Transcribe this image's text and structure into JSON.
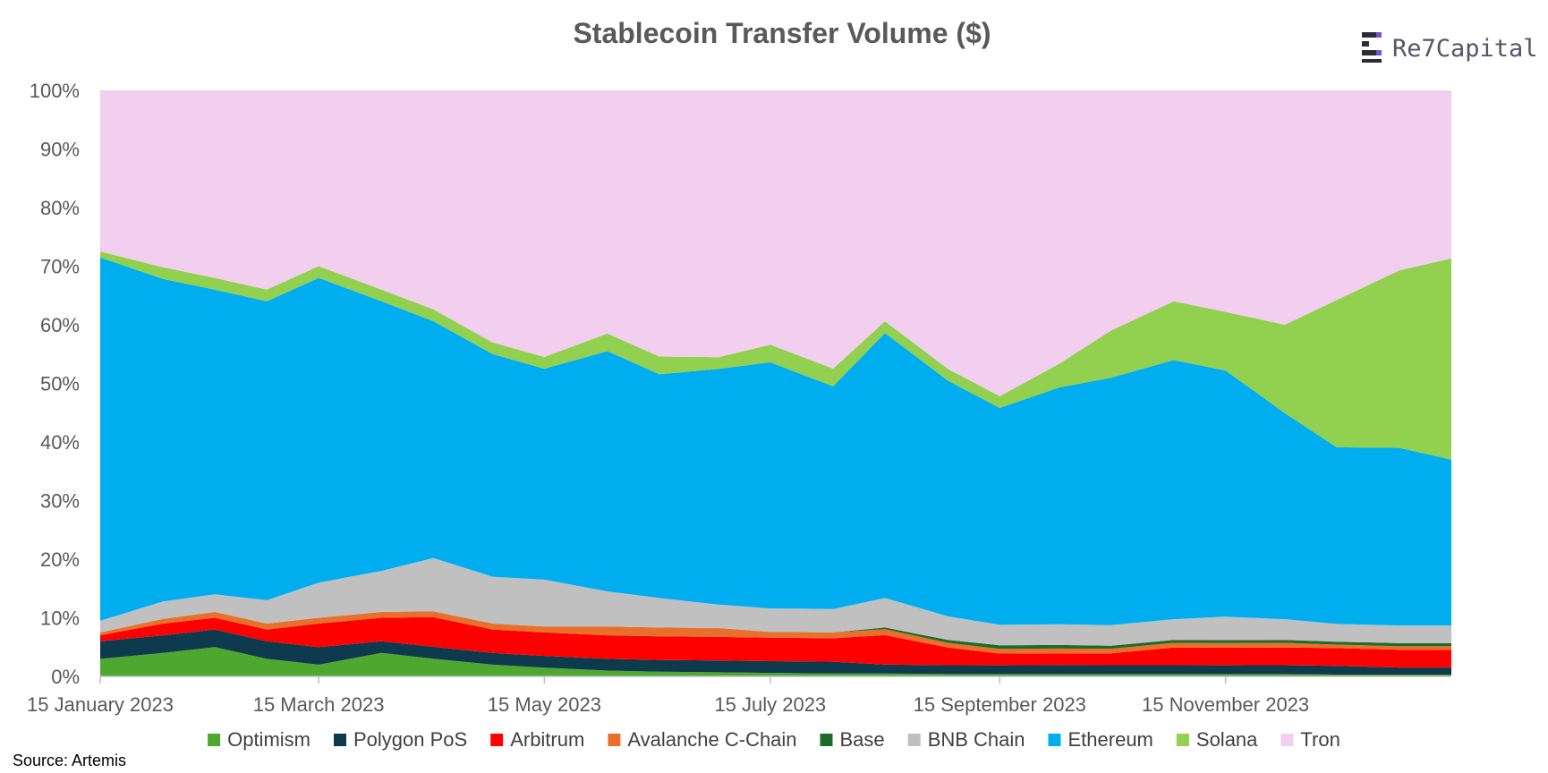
{
  "chart_data": {
    "type": "area",
    "stacked": true,
    "normalized_percent": true,
    "title": "Stablecoin Transfer Volume ($)",
    "source": "Source: Artemis",
    "logo_text": "Re7Capital",
    "ylim": [
      0,
      100
    ],
    "y_ticks": [
      "0%",
      "10%",
      "20%",
      "30%",
      "40%",
      "50%",
      "60%",
      "70%",
      "80%",
      "90%",
      "100%"
    ],
    "y_tick_values": [
      0,
      10,
      20,
      30,
      40,
      50,
      60,
      70,
      80,
      90,
      100
    ],
    "x_range": [
      "2023-01-15",
      "2024-01-15"
    ],
    "x_ticks": [
      "15 January 2023",
      "15 March 2023",
      "15 May 2023",
      "15 July 2023",
      "15 September 2023",
      "15 November 2023"
    ],
    "x_tick_dates": [
      "2023-01-15",
      "2023-03-15",
      "2023-05-15",
      "2023-07-15",
      "2023-09-15",
      "2023-11-15"
    ],
    "legend_position": "bottom",
    "x": [
      "2023-01-15",
      "2023-02-01",
      "2023-02-15",
      "2023-03-01",
      "2023-03-15",
      "2023-04-01",
      "2023-04-15",
      "2023-05-01",
      "2023-05-15",
      "2023-06-01",
      "2023-06-15",
      "2023-07-01",
      "2023-07-15",
      "2023-08-01",
      "2023-08-15",
      "2023-09-01",
      "2023-09-15",
      "2023-10-01",
      "2023-10-15",
      "2023-11-01",
      "2023-11-15",
      "2023-12-01",
      "2023-12-15",
      "2024-01-01",
      "2024-01-15"
    ],
    "series": [
      {
        "name": "Optimism",
        "color": "#4ea72e",
        "values": [
          3,
          4,
          5,
          3,
          2,
          4,
          3,
          2,
          1.5,
          1,
          0.8,
          0.7,
          0.6,
          0.5,
          0.5,
          0.4,
          0.4,
          0.4,
          0.4,
          0.4,
          0.4,
          0.4,
          0.3,
          0.3,
          0.3
        ]
      },
      {
        "name": "Polygon PoS",
        "color": "#0d3a4d",
        "values": [
          3,
          3,
          3,
          3,
          3,
          2,
          2,
          2,
          2,
          2,
          2,
          2,
          2,
          2,
          1.5,
          1.5,
          1.5,
          1.5,
          1.5,
          1.5,
          1.5,
          1.5,
          1.5,
          1.2,
          1.2
        ]
      },
      {
        "name": "Arbitrum",
        "color": "#ff0000",
        "values": [
          1,
          2,
          2,
          2,
          4,
          4,
          5,
          4,
          4,
          4,
          4,
          4,
          4,
          4,
          5,
          3,
          2,
          2,
          2,
          3,
          3,
          3,
          3,
          3,
          3
        ]
      },
      {
        "name": "Avalanche C-Chain",
        "color": "#e8702a",
        "values": [
          0.5,
          0.8,
          1,
          1,
          1,
          1,
          1,
          1,
          1,
          1.5,
          1.5,
          1.5,
          1,
          1,
          1,
          0.8,
          0.8,
          0.8,
          0.8,
          0.8,
          0.8,
          0.8,
          0.6,
          0.6,
          0.6
        ]
      },
      {
        "name": "Base",
        "color": "#1d6b2a",
        "values": [
          0,
          0,
          0,
          0,
          0,
          0,
          0,
          0,
          0,
          0,
          0,
          0,
          0,
          0,
          0.3,
          0.5,
          0.6,
          0.6,
          0.5,
          0.5,
          0.5,
          0.5,
          0.5,
          0.5,
          0.5
        ]
      },
      {
        "name": "BNB Chain",
        "color": "#c0c0c0",
        "values": [
          2,
          3,
          3,
          4,
          6,
          7,
          9,
          8,
          8,
          6,
          5,
          4,
          4,
          4,
          5,
          4,
          3.5,
          3.5,
          3.5,
          3.5,
          4,
          3.5,
          3,
          3,
          3
        ]
      },
      {
        "name": "Ethereum",
        "color": "#00aeef",
        "values": [
          62,
          55,
          52,
          51,
          52,
          46,
          40,
          38,
          36,
          41,
          38,
          40,
          42,
          38,
          45,
          40,
          37,
          40,
          42,
          44,
          42,
          35,
          30,
          30,
          28
        ]
      },
      {
        "name": "Solana",
        "color": "#92d050",
        "values": [
          1,
          2,
          2,
          2,
          2,
          2,
          2,
          2,
          2,
          3,
          3,
          2,
          3,
          3,
          2,
          2,
          2,
          4,
          8,
          10,
          10,
          15,
          25,
          30,
          34
        ]
      },
      {
        "name": "Tron",
        "color": "#f2cfee",
        "values": [
          27.5,
          30.2,
          32,
          34,
          30,
          34,
          37,
          43,
          45.5,
          41.5,
          45.2,
          45.3,
          43.4,
          47.5,
          39.2,
          47.3,
          52.2,
          46.2,
          40.8,
          35.8,
          37.8,
          39.8,
          35.6,
          30.4,
          28.4
        ]
      }
    ]
  }
}
